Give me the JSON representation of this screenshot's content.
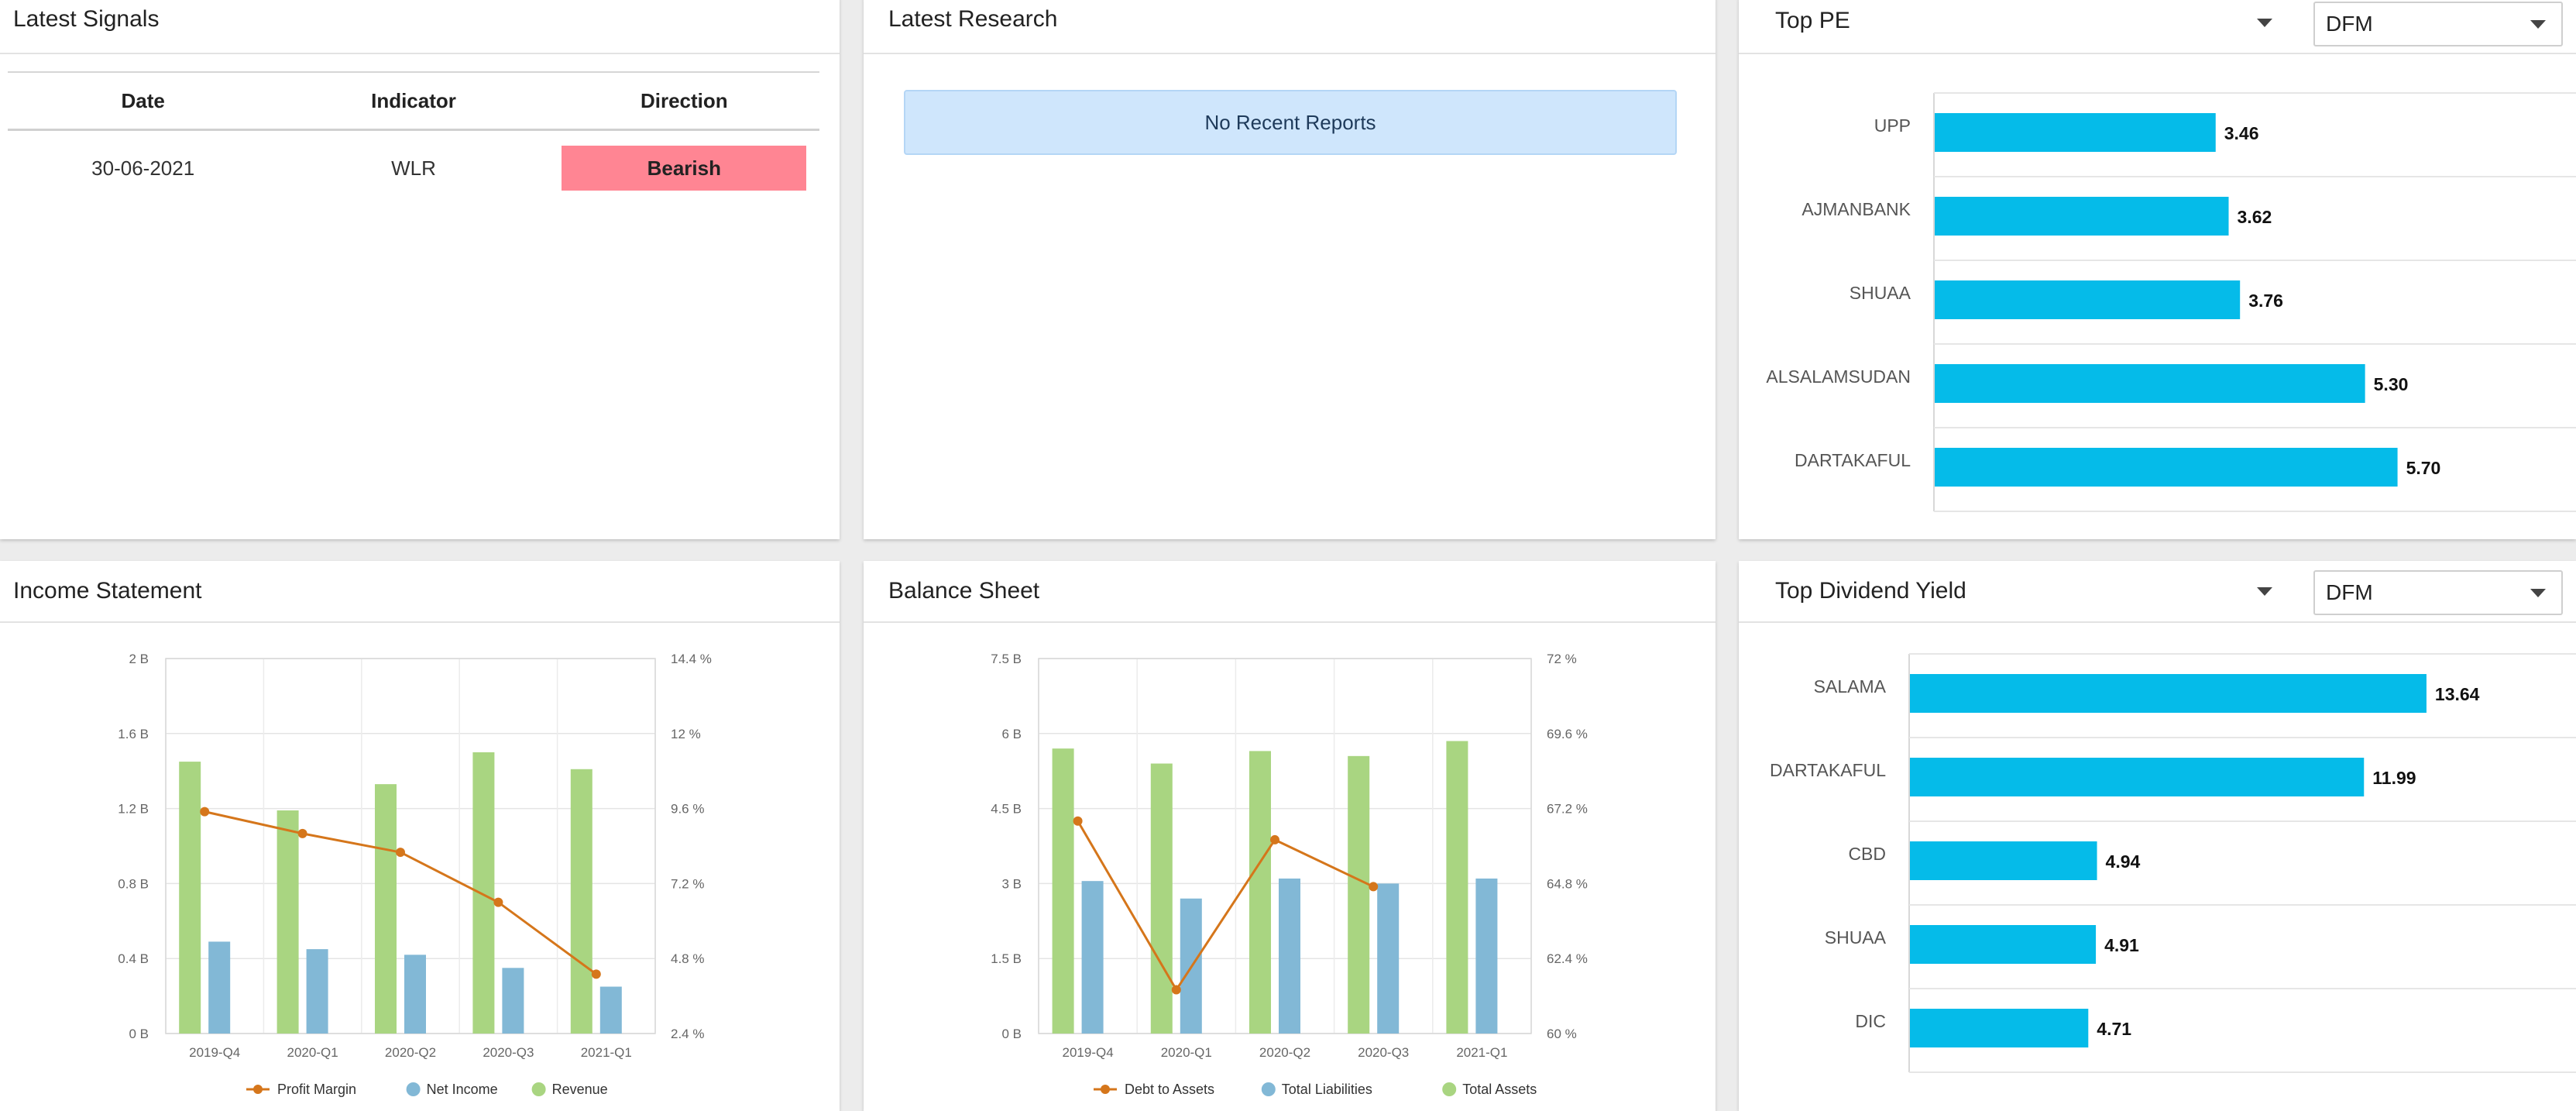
{
  "signals": {
    "title": "Latest Signals",
    "columns": [
      "Date",
      "Indicator",
      "Direction"
    ],
    "rows": [
      {
        "date": "30-06-2021",
        "indicator": "WLR",
        "direction": "Bearish"
      }
    ]
  },
  "research": {
    "title": "Latest Research",
    "empty_message": "No Recent Reports"
  },
  "top_pe": {
    "title": "Top PE",
    "exchange": "DFM",
    "bar_color": "#05bbe9"
  },
  "income": {
    "title": "Income Statement"
  },
  "balance": {
    "title": "Balance Sheet"
  },
  "top_div": {
    "title": "Top Dividend Yield",
    "exchange": "DFM"
  },
  "chart_data": [
    {
      "id": "top-pe",
      "type": "bar",
      "orientation": "horizontal",
      "categories": [
        "UPP",
        "AJMANBANK",
        "SHUAA",
        "ALSALAMSUDAN",
        "DARTAKAFUL"
      ],
      "values": [
        3.46,
        3.62,
        3.76,
        5.3,
        5.7
      ],
      "labels": [
        "3.46",
        "3.62",
        "3.76",
        "5.30",
        "5.70"
      ],
      "xlim": [
        0,
        6.2
      ],
      "grid": true
    },
    {
      "id": "top-dividend",
      "type": "bar",
      "orientation": "horizontal",
      "categories": [
        "SALAMA",
        "DARTAKAFUL",
        "CBD",
        "SHUAA",
        "DIC"
      ],
      "values": [
        13.64,
        11.99,
        4.94,
        4.91,
        4.71
      ],
      "labels": [
        "13.64",
        "11.99",
        "4.94",
        "4.91",
        "4.71"
      ],
      "xlim": [
        0,
        16.3
      ],
      "grid": true
    },
    {
      "id": "income-statement",
      "type": "bar",
      "categories": [
        "2019-Q4",
        "2020-Q1",
        "2020-Q2",
        "2020-Q3",
        "2021-Q1"
      ],
      "ylim": [
        0,
        2
      ],
      "yticks": [
        "0 B",
        "0.4 B",
        "0.8 B",
        "1.2 B",
        "1.6 B",
        "2 B"
      ],
      "y2lim": [
        2.4,
        14.4
      ],
      "y2ticks": [
        "2.4 %",
        "4.8 %",
        "7.2 %",
        "9.6 %",
        "12 %",
        "14.4 %"
      ],
      "series": [
        {
          "name": "Revenue",
          "kind": "bar",
          "axis": "left",
          "color": "#a9d581",
          "values": [
            1.45,
            1.19,
            1.33,
            1.5,
            1.41
          ]
        },
        {
          "name": "Net Income",
          "kind": "bar",
          "axis": "left",
          "color": "#82b8d6",
          "values": [
            0.49,
            0.45,
            0.42,
            0.35,
            0.25
          ]
        },
        {
          "name": "Profit Margin",
          "kind": "line",
          "axis": "right",
          "color": "#d5761b",
          "values": [
            9.5,
            8.8,
            8.2,
            6.6,
            4.3
          ]
        }
      ],
      "legend": [
        "Profit Margin",
        "Net Income",
        "Revenue"
      ],
      "legend_position": "bottom",
      "grid": true
    },
    {
      "id": "balance-sheet",
      "type": "bar",
      "categories": [
        "2019-Q4",
        "2020-Q1",
        "2020-Q2",
        "2020-Q3",
        "2021-Q1"
      ],
      "ylim": [
        0,
        7.5
      ],
      "yticks": [
        "0 B",
        "1.5 B",
        "3 B",
        "4.5 B",
        "6 B",
        "7.5 B"
      ],
      "y2lim": [
        60,
        72
      ],
      "y2ticks": [
        "60 %",
        "62.4 %",
        "64.8 %",
        "67.2 %",
        "69.6 %",
        "72 %"
      ],
      "series": [
        {
          "name": "Total Assets",
          "kind": "bar",
          "axis": "left",
          "color": "#a9d581",
          "values": [
            5.7,
            5.4,
            5.65,
            5.55,
            5.85
          ]
        },
        {
          "name": "Total Liabilities",
          "kind": "bar",
          "axis": "left",
          "color": "#82b8d6",
          "values": [
            3.05,
            2.7,
            3.1,
            3.0,
            3.1
          ]
        },
        {
          "name": "Debt to Assets",
          "kind": "line",
          "axis": "right",
          "color": "#d5761b",
          "values": [
            66.8,
            61.4,
            66.2,
            64.7,
            null
          ]
        }
      ],
      "legend": [
        "Debt to Assets",
        "Total Liabilities",
        "Total Assets"
      ],
      "legend_position": "bottom",
      "grid": true
    }
  ]
}
